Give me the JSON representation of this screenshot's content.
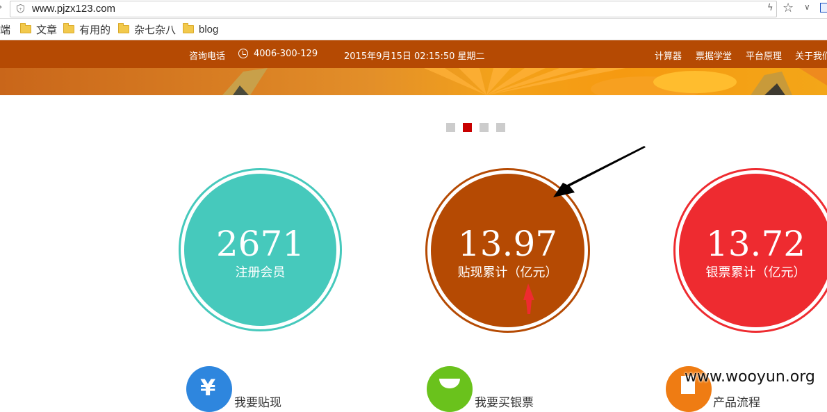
{
  "browser": {
    "url": "www.pjzx123.com",
    "bookmarks": [
      {
        "label": "端"
      },
      {
        "label": "文章"
      },
      {
        "label": "有用的"
      },
      {
        "label": "杂七杂八"
      },
      {
        "label": "blog"
      }
    ]
  },
  "header": {
    "phone_label": "咨询电话",
    "phone_number": "4006-300-129",
    "datetime": "2015年9月15日 02:15:50 星期二",
    "nav": [
      "计算器",
      "票据学堂",
      "平台原理",
      "关于我们"
    ]
  },
  "slider": {
    "dot_count": 4,
    "active_index": 1
  },
  "stats": [
    {
      "value": "2671",
      "label": "注册会员",
      "color": "#46c9bc"
    },
    {
      "value": "13.97",
      "label": "贴现累计（亿元）",
      "color": "#b54a03"
    },
    {
      "value": "13.72",
      "label": "银票累计（亿元）",
      "color": "#ee2b30"
    }
  ],
  "features": [
    {
      "title": "我要贴现",
      "color": "#2e86de",
      "icon": "yen-icon"
    },
    {
      "title": "我要买银票",
      "color": "#6ac21c",
      "icon": "ingot-icon"
    },
    {
      "title": "产品流程",
      "color": "#ef7c13",
      "icon": "document-icon"
    }
  ],
  "watermark": "www.wooyun.org",
  "colors": {
    "nav_bg": "#b54a03",
    "dot_active": "#c80000",
    "dot_inactive": "#cccccc"
  }
}
